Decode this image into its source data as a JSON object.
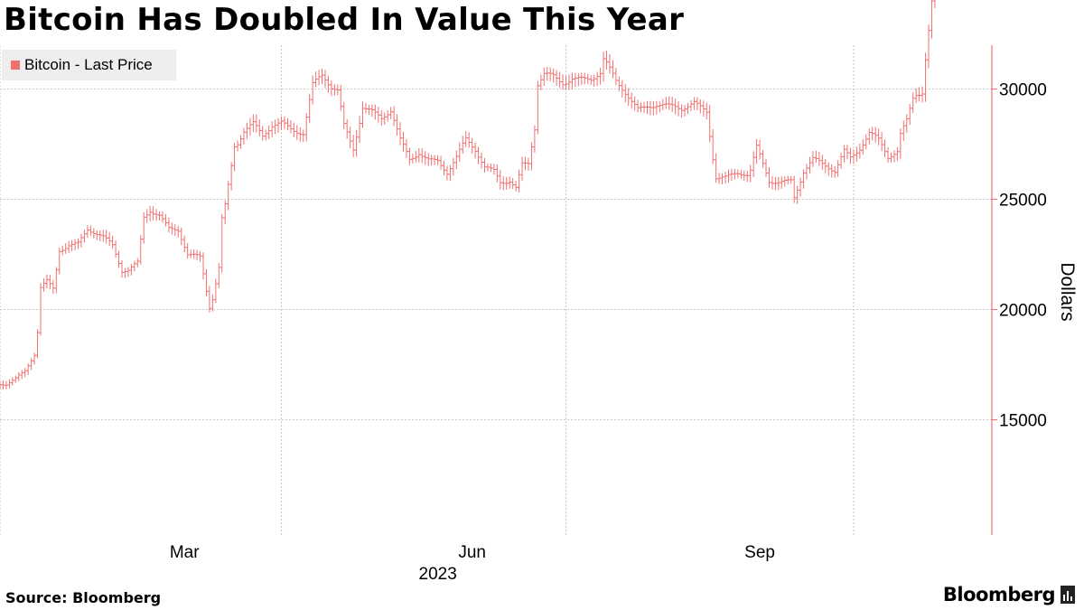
{
  "header": {
    "title": "Bitcoin Has Doubled In Value This Year"
  },
  "footer": {
    "source": "Source: Bloomberg",
    "brand": "Bloomberg"
  },
  "legend": {
    "label": "Bitcoin - Last Price",
    "color": "#f07070"
  },
  "colors": {
    "series": "#f07070",
    "axis": "#f07070",
    "grid": "#c8c8c8",
    "text": "#000000"
  },
  "icons": {
    "logo": "bloomberg-terminal-icon"
  },
  "chart_data": {
    "type": "ohlc",
    "title": "Bitcoin Has Doubled In Value This Year",
    "xlabel": "2023",
    "ylabel": "Dollars",
    "ylim": [
      14750,
      36500
    ],
    "yticks": [
      15000,
      20000,
      25000,
      30000,
      35000
    ],
    "xlim": [
      "2023-01-01",
      "2023-11-07"
    ],
    "xticks": [
      {
        "date": "2023-03-01",
        "label": "Mar"
      },
      {
        "date": "2023-06-01",
        "label": "Jun"
      },
      {
        "date": "2023-09-01",
        "label": "Sep"
      }
    ],
    "xgrid": [
      "2023-01-01",
      "2023-04-01",
      "2023-07-01",
      "2023-10-01"
    ],
    "grid": true,
    "legend_position": "top-left",
    "series": [
      {
        "name": "Bitcoin - Last Price",
        "dates": [
          "2023-01-03",
          "2023-01-06",
          "2023-01-09",
          "2023-01-12",
          "2023-01-13",
          "2023-01-14",
          "2023-01-16",
          "2023-01-18",
          "2023-01-20",
          "2023-01-23",
          "2023-01-26",
          "2023-01-29",
          "2023-02-01",
          "2023-02-03",
          "2023-02-06",
          "2023-02-09",
          "2023-02-11",
          "2023-02-14",
          "2023-02-16",
          "2023-02-18",
          "2023-02-21",
          "2023-02-24",
          "2023-02-27",
          "2023-03-02",
          "2023-03-06",
          "2023-03-09",
          "2023-03-10",
          "2023-03-12",
          "2023-03-13",
          "2023-03-14",
          "2023-03-17",
          "2023-03-18",
          "2023-03-20",
          "2023-03-23",
          "2023-03-26",
          "2023-03-29",
          "2023-04-01",
          "2023-04-04",
          "2023-04-08",
          "2023-04-11",
          "2023-04-14",
          "2023-04-17",
          "2023-04-19",
          "2023-04-21",
          "2023-04-24",
          "2023-04-27",
          "2023-04-30",
          "2023-05-03",
          "2023-05-06",
          "2023-05-09",
          "2023-05-12",
          "2023-05-15",
          "2023-05-18",
          "2023-05-21",
          "2023-05-24",
          "2023-05-27",
          "2023-05-30",
          "2023-06-02",
          "2023-06-05",
          "2023-06-08",
          "2023-06-10",
          "2023-06-13",
          "2023-06-15",
          "2023-06-17",
          "2023-06-19",
          "2023-06-21",
          "2023-06-22",
          "2023-06-24",
          "2023-06-27",
          "2023-06-30",
          "2023-07-03",
          "2023-07-06",
          "2023-07-09",
          "2023-07-12",
          "2023-07-13",
          "2023-07-14",
          "2023-07-17",
          "2023-07-20",
          "2023-07-24",
          "2023-07-27",
          "2023-07-30",
          "2023-08-03",
          "2023-08-07",
          "2023-08-11",
          "2023-08-15",
          "2023-08-17",
          "2023-08-18",
          "2023-08-21",
          "2023-08-25",
          "2023-08-28",
          "2023-08-29",
          "2023-08-31",
          "2023-09-04",
          "2023-09-08",
          "2023-09-11",
          "2023-09-12",
          "2023-09-15",
          "2023-09-18",
          "2023-09-21",
          "2023-09-25",
          "2023-09-28",
          "2023-09-30",
          "2023-10-03",
          "2023-10-06",
          "2023-10-09",
          "2023-10-12",
          "2023-10-15",
          "2023-10-16",
          "2023-10-18",
          "2023-10-20",
          "2023-10-21",
          "2023-10-23",
          "2023-10-24",
          "2023-10-26",
          "2023-10-28",
          "2023-10-30",
          "2023-11-01",
          "2023-11-03",
          "2023-11-05"
        ],
        "values": [
          16700,
          16900,
          17200,
          17900,
          18900,
          20900,
          21200,
          20900,
          22700,
          23000,
          23100,
          23700,
          23400,
          23200,
          22800,
          21700,
          21800,
          22200,
          24300,
          24600,
          24300,
          23600,
          23500,
          22400,
          22400,
          20200,
          20600,
          22000,
          24200,
          24800,
          27400,
          27500,
          28000,
          28300,
          27800,
          28400,
          28600,
          28300,
          28000,
          30100,
          30500,
          30000,
          29900,
          28400,
          27400,
          29300,
          29000,
          28600,
          28900,
          27600,
          26800,
          27200,
          26900,
          26800,
          26200,
          26800,
          27600,
          27200,
          26500,
          26400,
          25900,
          25900,
          25500,
          26500,
          26500,
          28100,
          30100,
          30600,
          30600,
          30400,
          30600,
          30500,
          30400,
          30600,
          31200,
          31000,
          30300,
          29900,
          29200,
          29300,
          29300,
          29100,
          29000,
          29400,
          29100,
          27000,
          26100,
          26000,
          26100,
          26000,
          26200,
          27300,
          25900,
          25900,
          25900,
          25100,
          26200,
          26700,
          26500,
          26300,
          27300,
          27000,
          27400,
          28000,
          27600,
          26800,
          27100,
          27900,
          28600,
          29700,
          29900,
          30000,
          31500,
          34000,
          34500,
          34600,
          34700,
          34700,
          34800
        ]
      }
    ]
  }
}
